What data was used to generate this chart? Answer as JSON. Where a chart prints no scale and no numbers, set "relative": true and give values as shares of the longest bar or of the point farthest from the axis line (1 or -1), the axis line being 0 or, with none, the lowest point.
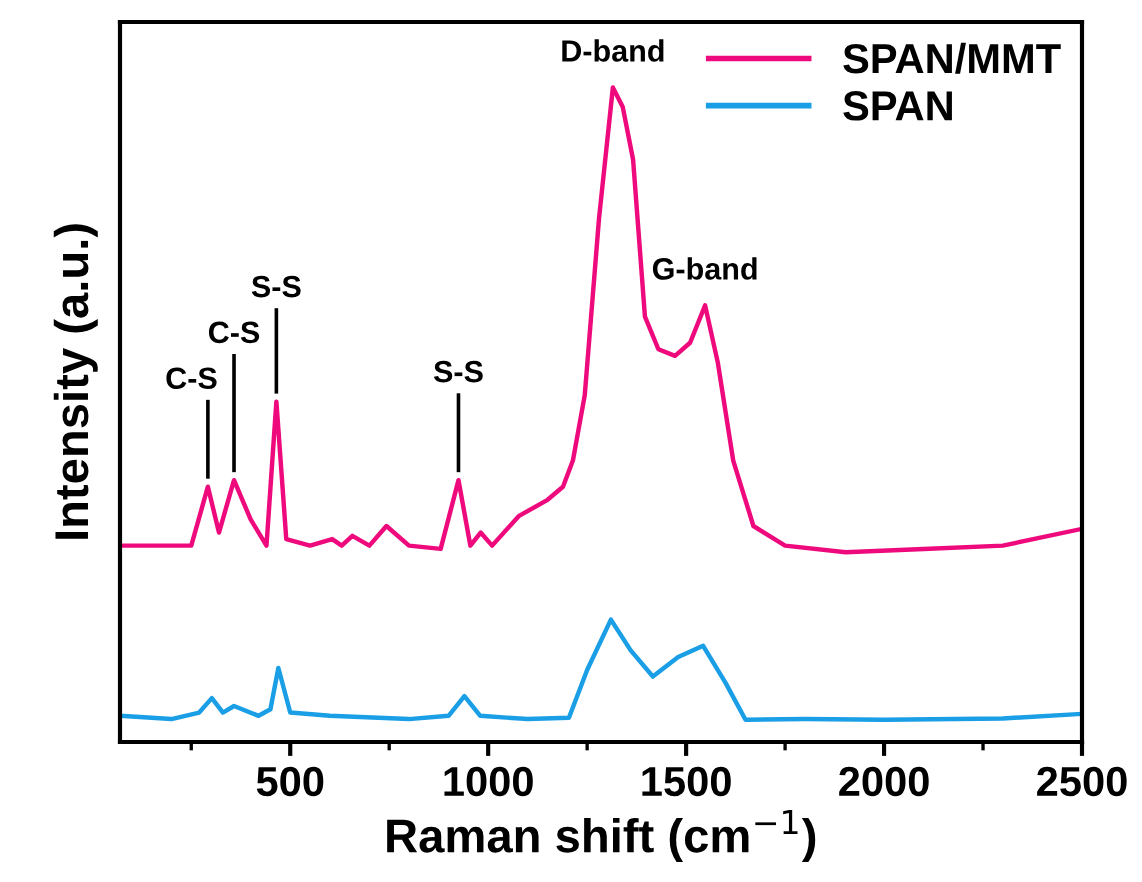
{
  "chart_data": {
    "type": "line",
    "relative": true,
    "xlabel": "Raman shift (cm$^{−1}$)",
    "ylabel": "Intensity (a.u.)",
    "xlim": [
      70,
      2500
    ],
    "xticks": [
      500,
      1000,
      1500,
      2000,
      2500
    ],
    "ylim": [
      0,
      1.1
    ],
    "tick_labels": "x",
    "grid": false,
    "legend": "top right",
    "line_style": "solid",
    "series": [
      {
        "name": "SPAN/MMT",
        "color": "#ee0a7c",
        "x": [
          70,
          150,
          250,
          292,
          320,
          358,
          400,
          440,
          465,
          490,
          550,
          606,
          630,
          657,
          700,
          743,
          800,
          880,
          925,
          955,
          981,
          1010,
          1077,
          1150,
          1189,
          1214,
          1244,
          1280,
          1315,
          1340,
          1366,
          1396,
          1430,
          1472,
          1510,
          1548,
          1580,
          1619,
          1670,
          1750,
          1903,
          2100,
          2300,
          2495
        ],
        "values": [
          0.3,
          0.3,
          0.3,
          0.39,
          0.32,
          0.4,
          0.34,
          0.3,
          0.52,
          0.31,
          0.3,
          0.31,
          0.3,
          0.315,
          0.3,
          0.33,
          0.3,
          0.295,
          0.4,
          0.3,
          0.32,
          0.3,
          0.345,
          0.37,
          0.39,
          0.43,
          0.53,
          0.8,
          1.0,
          0.97,
          0.89,
          0.65,
          0.6,
          0.59,
          0.61,
          0.667,
          0.58,
          0.43,
          0.33,
          0.3,
          0.29,
          0.295,
          0.3,
          0.325
        ]
      },
      {
        "name": "SPAN",
        "color": "#1a9ee6",
        "x": [
          70,
          200,
          270,
          302,
          330,
          358,
          420,
          450,
          470,
          500,
          600,
          800,
          900,
          940,
          980,
          1100,
          1204,
          1250,
          1310,
          1360,
          1416,
          1480,
          1543,
          1600,
          1650,
          1800,
          2000,
          2300,
          2500
        ],
        "values": [
          0.04,
          0.035,
          0.045,
          0.067,
          0.045,
          0.055,
          0.04,
          0.05,
          0.113,
          0.045,
          0.04,
          0.035,
          0.04,
          0.07,
          0.04,
          0.035,
          0.037,
          0.11,
          0.187,
          0.14,
          0.1,
          0.13,
          0.147,
          0.09,
          0.034,
          0.035,
          0.034,
          0.036,
          0.043
        ]
      }
    ],
    "annotations": [
      {
        "text": "C-S",
        "x": 292,
        "y": 0.39
      },
      {
        "text": "C-S",
        "x": 358,
        "y": 0.4
      },
      {
        "text": "S-S",
        "x": 465,
        "y": 0.52
      },
      {
        "text": "S-S",
        "x": 925,
        "y": 0.4
      },
      {
        "text": "D-band",
        "x": 1315,
        "y": 1.0
      },
      {
        "text": "G-band",
        "x": 1548,
        "y": 0.667
      }
    ]
  }
}
